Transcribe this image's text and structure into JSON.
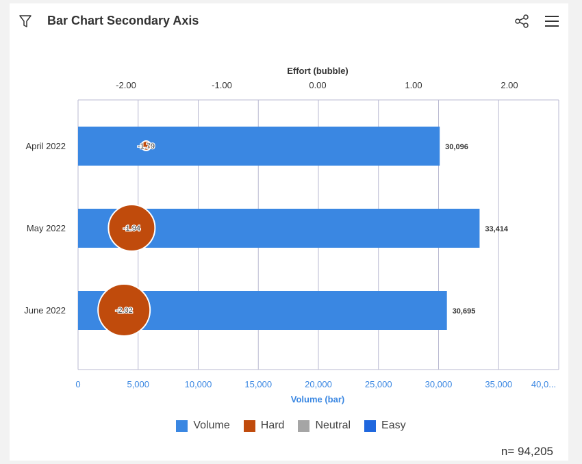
{
  "header": {
    "title": "Bar Chart Secondary Axis",
    "icons": [
      "filter-icon",
      "share-icon",
      "menu-icon"
    ]
  },
  "footer": {
    "n_label": "n= 94,205"
  },
  "chart_data": {
    "type": "bar",
    "orientation": "horizontal",
    "categories": [
      "April 2022",
      "May 2022",
      "June 2022"
    ],
    "series": [
      {
        "name": "Volume",
        "type": "bar",
        "values": [
          30096,
          33414,
          30695
        ],
        "labels": [
          "30,096",
          "33,414",
          "30,695"
        ],
        "color": "#3a87e2"
      },
      {
        "name": "Hard",
        "type": "bubble",
        "values": [
          -1.79,
          -1.94,
          -2.02
        ],
        "labels": [
          "-1.79",
          "-1.94",
          "-2.02"
        ],
        "color": "#c04b0c"
      }
    ],
    "x_primary": {
      "label": "Volume (bar)",
      "range": [
        0,
        40000
      ],
      "ticks": [
        "0",
        "5,000",
        "10,000",
        "15,000",
        "20,000",
        "25,000",
        "30,000",
        "35,000",
        "40,0..."
      ],
      "tick_values": [
        0,
        5000,
        10000,
        15000,
        20000,
        25000,
        30000,
        35000,
        40000
      ],
      "color": "#3a87e2"
    },
    "x_secondary": {
      "label": "Effort (bubble)",
      "range": [
        -2.5,
        2.5
      ],
      "ticks": [
        "-2.00",
        "-1.00",
        "0.00",
        "1.00",
        "2.00"
      ],
      "tick_values": [
        -2,
        -1,
        0,
        1,
        2
      ]
    },
    "legend": {
      "position": "bottom",
      "items": [
        {
          "label": "Volume",
          "color": "#3a87e2"
        },
        {
          "label": "Hard",
          "color": "#c04b0c"
        },
        {
          "label": "Neutral",
          "color": "#a5a5a5"
        },
        {
          "label": "Easy",
          "color": "#1f67de"
        }
      ]
    },
    "grid": true
  }
}
